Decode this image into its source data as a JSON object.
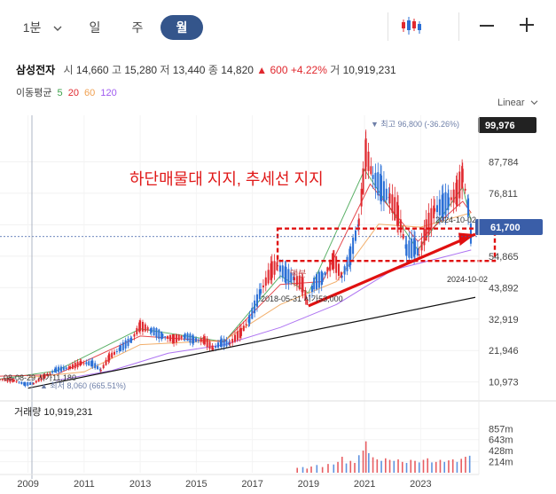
{
  "toolbar": {
    "timeframe_minute": "1분",
    "timeframe_day": "일",
    "timeframe_week": "주",
    "timeframe_month": "월",
    "icons": [
      "candlestick-icon",
      "chevron-down-icon",
      "minus-icon",
      "plus-icon"
    ]
  },
  "quote": {
    "name": "삼성전자",
    "open_label": "시",
    "open": "14,660",
    "high_label": "고",
    "high": "15,280",
    "low_label": "저",
    "low": "13,440",
    "close_label": "종",
    "close": "14,820",
    "change": "▲ 600",
    "change_pct": "+4.22%",
    "volume_label": "거",
    "volume": "10,919,231"
  },
  "ma": {
    "label": "이동평균",
    "periods": [
      {
        "period": "5",
        "color": "#3fa34d"
      },
      {
        "period": "20",
        "color": "#e0282e"
      },
      {
        "period": "60",
        "color": "#f0a050"
      },
      {
        "period": "120",
        "color": "#a05cf0"
      }
    ]
  },
  "colors": {
    "up": "#e0282e",
    "down": "#2a6fd6",
    "accent": "#34558b",
    "trendline": "#e01010",
    "support_box": "#e01010"
  },
  "chart_data": {
    "type": "candlestick",
    "scale": "Linear",
    "ylim": [
      5000,
      104000
    ],
    "y_ticks": [
      {
        "value": 87784,
        "label": "87,784"
      },
      {
        "value": 76811,
        "label": "76,811"
      },
      {
        "value": 65838,
        "label": "65,838"
      },
      {
        "value": 54865,
        "label": "54,865"
      },
      {
        "value": 43892,
        "label": "43,892"
      },
      {
        "value": 32919,
        "label": "32,919"
      },
      {
        "value": 21946,
        "label": "21,946"
      },
      {
        "value": 10973,
        "label": "10,973"
      }
    ],
    "x_ticks": [
      "2009",
      "2011",
      "2013",
      "2015",
      "2017",
      "2019",
      "2021",
      "2023"
    ],
    "highlight_label": "99,976",
    "highlight_value": 99976,
    "current_label": "61,700",
    "current_value": 61700,
    "annotations": {
      "headline": "하단매물대 지지, 추세선 지지",
      "max_label": "▼ 최고 96,800 (-36.26%)",
      "min_label": "▲ 최저 8,060 (665.51%)",
      "left_start_label": "08-08-29 시가11,180",
      "mid_label": "2018-05-31 시가53,000",
      "split_label": "액분",
      "right_label_1": "2024-10-02",
      "right_label_2": "2024-10-02"
    },
    "volume": {
      "title": "거래량 10,919,231",
      "ylim": [
        0,
        1000
      ],
      "ticks": [
        {
          "value": 857,
          "label": "857m"
        },
        {
          "value": 643,
          "label": "643m"
        },
        {
          "value": 428,
          "label": "428m"
        },
        {
          "value": 214,
          "label": "214m"
        }
      ]
    },
    "price_series": [
      [
        2008.0,
        12000
      ],
      [
        2008.5,
        11500
      ],
      [
        2008.9,
        10200
      ],
      [
        2009.2,
        10500
      ],
      [
        2009.6,
        13000
      ],
      [
        2010.0,
        15200
      ],
      [
        2010.5,
        16000
      ],
      [
        2010.9,
        17600
      ],
      [
        2011.3,
        17400
      ],
      [
        2011.6,
        15000
      ],
      [
        2011.9,
        19600
      ],
      [
        2012.3,
        22700
      ],
      [
        2012.7,
        25800
      ],
      [
        2013.0,
        30600
      ],
      [
        2013.4,
        29000
      ],
      [
        2013.8,
        27000
      ],
      [
        2014.2,
        26000
      ],
      [
        2014.6,
        27000
      ],
      [
        2014.9,
        25700
      ],
      [
        2015.3,
        25500
      ],
      [
        2015.6,
        22600
      ],
      [
        2015.9,
        24700
      ],
      [
        2016.2,
        24400
      ],
      [
        2016.6,
        28400
      ],
      [
        2016.9,
        32700
      ],
      [
        2017.3,
        42600
      ],
      [
        2017.7,
        50200
      ],
      [
        2017.9,
        51500
      ],
      [
        2018.2,
        48200
      ],
      [
        2018.5,
        47000
      ],
      [
        2018.8,
        44800
      ],
      [
        2018.95,
        38800
      ],
      [
        2019.2,
        45300
      ],
      [
        2019.5,
        47400
      ],
      [
        2019.9,
        53700
      ],
      [
        2020.2,
        47700
      ],
      [
        2020.5,
        55000
      ],
      [
        2020.8,
        66700
      ],
      [
        2020.95,
        81000
      ],
      [
        2021.05,
        91000
      ],
      [
        2021.3,
        82500
      ],
      [
        2021.6,
        78500
      ],
      [
        2021.9,
        75000
      ],
      [
        2022.2,
        69000
      ],
      [
        2022.5,
        57000
      ],
      [
        2022.8,
        58000
      ],
      [
        2022.95,
        55300
      ],
      [
        2023.2,
        64000
      ],
      [
        2023.5,
        71000
      ],
      [
        2023.8,
        72500
      ],
      [
        2024.0,
        74000
      ],
      [
        2024.3,
        77000
      ],
      [
        2024.5,
        83000
      ],
      [
        2024.7,
        72000
      ],
      [
        2024.8,
        61700
      ]
    ],
    "ma_series": {
      "5": [
        [
          2008.0,
          12000
        ],
        [
          2010.0,
          14800
        ],
        [
          2013.0,
          29500
        ],
        [
          2016.0,
          25000
        ],
        [
          2018.0,
          48000
        ],
        [
          2019.0,
          42000
        ],
        [
          2021.0,
          85000
        ],
        [
          2022.9,
          57000
        ],
        [
          2024.5,
          79000
        ],
        [
          2024.8,
          67000
        ]
      ],
      "20": [
        [
          2008.0,
          13000
        ],
        [
          2010.0,
          13500
        ],
        [
          2013.0,
          27000
        ],
        [
          2016.0,
          25000
        ],
        [
          2018.0,
          45000
        ],
        [
          2019.5,
          46000
        ],
        [
          2021.2,
          80000
        ],
        [
          2022.9,
          60000
        ],
        [
          2024.5,
          74000
        ],
        [
          2024.8,
          70000
        ]
      ],
      "60": [
        [
          2009.0,
          12500
        ],
        [
          2011.0,
          14500
        ],
        [
          2013.0,
          24000
        ],
        [
          2016.0,
          25500
        ],
        [
          2018.0,
          38000
        ],
        [
          2020.0,
          46000
        ],
        [
          2021.5,
          66000
        ],
        [
          2023.0,
          65000
        ],
        [
          2024.8,
          70000
        ]
      ],
      "120": [
        [
          2010.0,
          11500
        ],
        [
          2012.0,
          15000
        ],
        [
          2014.0,
          21000
        ],
        [
          2016.0,
          24000
        ],
        [
          2018.0,
          30000
        ],
        [
          2020.0,
          38000
        ],
        [
          2022.0,
          50000
        ],
        [
          2024.0,
          55000
        ],
        [
          2024.8,
          57000
        ]
      ]
    },
    "volume_series": [
      [
        2018.6,
        95
      ],
      [
        2018.8,
        110
      ],
      [
        2018.95,
        80
      ],
      [
        2019.1,
        120
      ],
      [
        2019.3,
        150
      ],
      [
        2019.5,
        110
      ],
      [
        2019.7,
        170
      ],
      [
        2019.9,
        160
      ],
      [
        2020.05,
        210
      ],
      [
        2020.2,
        310
      ],
      [
        2020.35,
        180
      ],
      [
        2020.5,
        230
      ],
      [
        2020.65,
        190
      ],
      [
        2020.8,
        340
      ],
      [
        2020.95,
        430
      ],
      [
        2021.05,
        610
      ],
      [
        2021.15,
        380
      ],
      [
        2021.3,
        300
      ],
      [
        2021.45,
        260
      ],
      [
        2021.6,
        230
      ],
      [
        2021.75,
        280
      ],
      [
        2021.9,
        250
      ],
      [
        2022.05,
        230
      ],
      [
        2022.2,
        260
      ],
      [
        2022.35,
        210
      ],
      [
        2022.5,
        190
      ],
      [
        2022.65,
        250
      ],
      [
        2022.8,
        230
      ],
      [
        2022.95,
        200
      ],
      [
        2023.1,
        250
      ],
      [
        2023.25,
        280
      ],
      [
        2023.4,
        200
      ],
      [
        2023.55,
        210
      ],
      [
        2023.7,
        250
      ],
      [
        2023.85,
        210
      ],
      [
        2024.0,
        240
      ],
      [
        2024.15,
        260
      ],
      [
        2024.3,
        210
      ],
      [
        2024.45,
        270
      ],
      [
        2024.6,
        310
      ],
      [
        2024.75,
        330
      ]
    ]
  }
}
